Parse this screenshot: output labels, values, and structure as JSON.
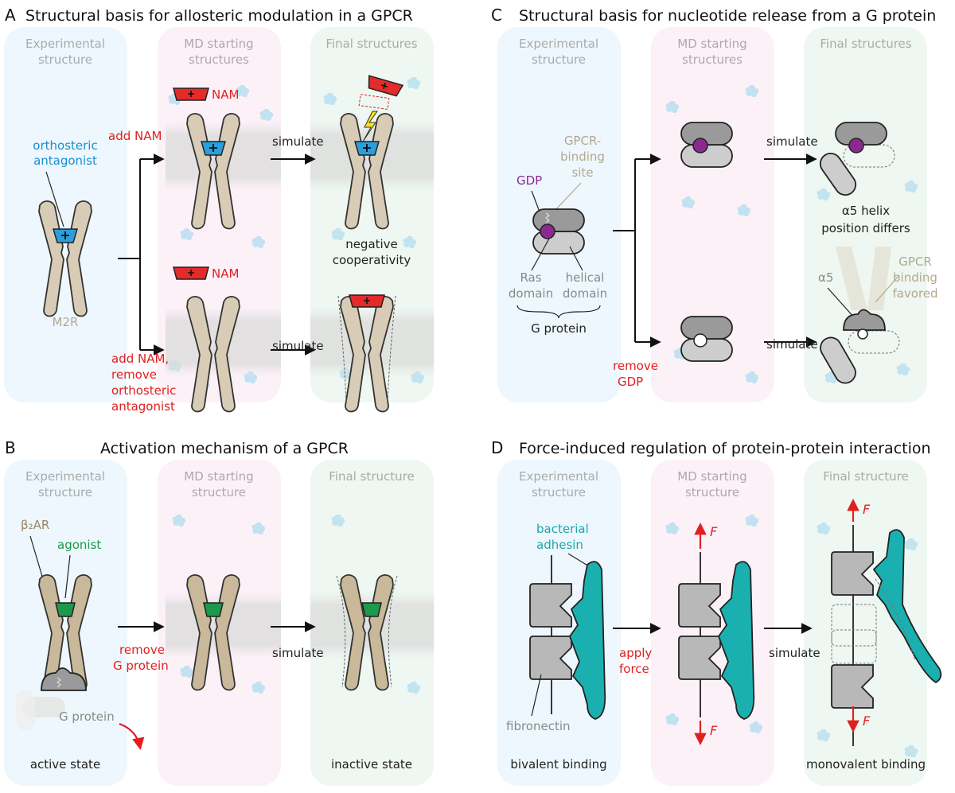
{
  "panels": {
    "A": {
      "letter": "A",
      "title": "Structural basis for allosteric modulation in a GPCR",
      "col1": [
        "Experimental",
        "structure"
      ],
      "col2": [
        "MD starting",
        "structures"
      ],
      "col3": [
        "Final structures"
      ],
      "orthosteric": [
        "orthosteric",
        "antagonist"
      ],
      "m2r": "M2R",
      "add_nam": "add NAM",
      "add_nam_remove": [
        "add NAM,",
        "remove",
        "orthosteric",
        "antagonist"
      ],
      "nam": "NAM",
      "simulate": "simulate",
      "negative": [
        "negative",
        "cooperativity"
      ]
    },
    "B": {
      "letter": "B",
      "title": "Activation mechanism of a GPCR",
      "col1": [
        "Experimental",
        "structure"
      ],
      "col2": [
        "MD starting",
        "structure"
      ],
      "col3": [
        "Final structure"
      ],
      "b2ar": "β₂AR",
      "agonist": "agonist",
      "gprotein": "G protein",
      "remove_gprotein": [
        "remove",
        "G protein"
      ],
      "simulate": "simulate",
      "active": "active state",
      "inactive": "inactive state"
    },
    "C": {
      "letter": "C",
      "title": "Structural basis for nucleotide release from a G protein",
      "col1": [
        "Experimental",
        "structure"
      ],
      "col2": [
        "MD starting",
        "structures"
      ],
      "col3": [
        "Final structures"
      ],
      "gdp": "GDP",
      "binding_site": [
        "GPCR-",
        "binding",
        "site"
      ],
      "ras": [
        "Ras",
        "domain"
      ],
      "helical": [
        "helical",
        "domain"
      ],
      "gprotein": "G protein",
      "remove_gdp": [
        "remove",
        "GDP"
      ],
      "simulate": "simulate",
      "helix_differs": [
        "α5 helix",
        "position differs"
      ],
      "alpha5": "α5",
      "gpcr_favored": [
        "GPCR",
        "binding",
        "favored"
      ]
    },
    "D": {
      "letter": "D",
      "title": "Force-induced regulation of protein-protein interaction",
      "col1": [
        "Experimental",
        "structure"
      ],
      "col2": [
        "MD starting",
        "structure"
      ],
      "col3": [
        "Final structure"
      ],
      "adhesin": [
        "bacterial",
        "adhesin"
      ],
      "fibronectin": "fibronectin",
      "apply_force": [
        "apply",
        "force"
      ],
      "simulate": "simulate",
      "force_symbol": "F",
      "bivalent": "bivalent binding",
      "monovalent": "monovalent binding"
    }
  },
  "colors": {
    "col_blue": "#eef7fd",
    "col_pink": "#fdf1f8",
    "col_green": "#eef7f1",
    "receptor": "#d8ccb6",
    "receptor_dark": "#bfae8e",
    "antagonist": "#2a9fdc",
    "nam": "#e52a2a",
    "agonist": "#1a9a4a",
    "gdp": "#8a2a90",
    "gprotein_dark": "#9a9a9a",
    "gprotein_light": "#c8c8c8",
    "fibronectin": "#b8b8b8",
    "adhesin": "#1ab0b0",
    "arrow_red": "#e02020"
  }
}
